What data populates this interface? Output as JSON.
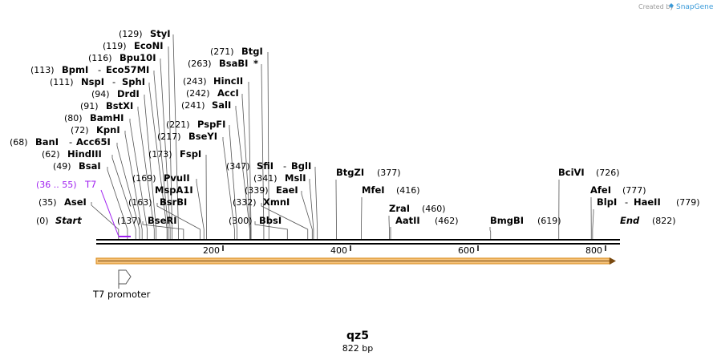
{
  "brand": {
    "created_by": "Created by",
    "name": "SnapGene"
  },
  "sequence": {
    "name": "qz5",
    "length_label": "822 bp",
    "length": 822
  },
  "ruler": {
    "ticks": [
      {
        "value": 200,
        "label": "200"
      },
      {
        "value": 400,
        "label": "400"
      },
      {
        "value": 600,
        "label": "600"
      },
      {
        "value": 800,
        "label": "800"
      }
    ]
  },
  "features": [
    {
      "name": "T7 promoter",
      "range_label": "(36 .. 55)",
      "short": "T7",
      "start": 36,
      "end": 55,
      "color": "#a020f0"
    }
  ],
  "labels": [
    {
      "pos": "(0)",
      "name": "Start",
      "site": 0
    },
    {
      "pos": "(35)",
      "name": "AseI",
      "site": 35
    },
    {
      "pos": "(49)",
      "name": "BsaI",
      "site": 49
    },
    {
      "pos": "(62)",
      "name": "HindIII",
      "site": 62
    },
    {
      "pos": "(68)",
      "name": "BanI",
      "name2": "Acc65I",
      "site": 68
    },
    {
      "pos": "(72)",
      "name": "KpnI",
      "site": 72
    },
    {
      "pos": "(80)",
      "name": "BamHI",
      "site": 80
    },
    {
      "pos": "(91)",
      "name": "BstXI",
      "site": 91
    },
    {
      "pos": "(94)",
      "name": "DrdI",
      "site": 94
    },
    {
      "pos": "(111)",
      "name": "NspI",
      "name2": "SphI",
      "site": 111
    },
    {
      "pos": "(113)",
      "name": "BpmI",
      "name2": "Eco57MI",
      "site": 113
    },
    {
      "pos": "(116)",
      "name": "Bpu10I",
      "site": 116
    },
    {
      "pos": "(119)",
      "name": "EcoNI",
      "site": 119
    },
    {
      "pos": "(129)",
      "name": "StyI",
      "site": 129
    },
    {
      "pos": "(137)",
      "name": "BseRI",
      "site": 137
    },
    {
      "pos": "(163)",
      "name": "BsrBI",
      "site": 163
    },
    {
      "pos": "(169)",
      "name": "PvuII",
      "name_alt": "MspA1I",
      "site": 169
    },
    {
      "pos": "(173)",
      "name": "FspI",
      "site": 173
    },
    {
      "pos": "(217)",
      "name": "BseYI",
      "site": 217
    },
    {
      "pos": "(221)",
      "name": "PspFI",
      "site": 221
    },
    {
      "pos": "(241)",
      "name": "SalI",
      "site": 241
    },
    {
      "pos": "(242)",
      "name": "AccI",
      "site": 242
    },
    {
      "pos": "(243)",
      "name": "HincII",
      "site": 243
    },
    {
      "pos": "(263)",
      "name": "BsaBI",
      "mark": "*",
      "site": 263
    },
    {
      "pos": "(271)",
      "name": "BtgI",
      "site": 271
    },
    {
      "pos": "(300)",
      "name": "BbsI",
      "site": 300
    },
    {
      "pos": "(332)",
      "name": "XmnI",
      "site": 332
    },
    {
      "pos": "(339)",
      "name": "EaeI",
      "site": 339
    },
    {
      "pos": "(341)",
      "name": "MslI",
      "site": 341
    },
    {
      "pos": "(347)",
      "name": "SfiI",
      "name2": "BglI",
      "site": 347
    },
    {
      "pos": "(377)",
      "name": "BtgZI",
      "site": 377
    },
    {
      "pos": "(416)",
      "name": "MfeI",
      "site": 416
    },
    {
      "pos": "(460)",
      "name": "ZraI",
      "site": 460
    },
    {
      "pos": "(462)",
      "name": "AatII",
      "site": 462
    },
    {
      "pos": "(619)",
      "name": "BmgBI",
      "site": 619
    },
    {
      "pos": "(726)",
      "name": "BciVI",
      "site": 726
    },
    {
      "pos": "(777)",
      "name": "AfeI",
      "site": 777
    },
    {
      "pos": "(779)",
      "name": "BlpI",
      "name2": "HaeII",
      "site": 779
    },
    {
      "pos": "(822)",
      "name": "End",
      "site": 822
    }
  ],
  "colors": {
    "backbone": "#000000",
    "orf_fill": "#f5c27a",
    "orf_stroke": "#d88a1a",
    "feature_purple": "#a020f0",
    "brand_blue": "#3a9ad9"
  }
}
